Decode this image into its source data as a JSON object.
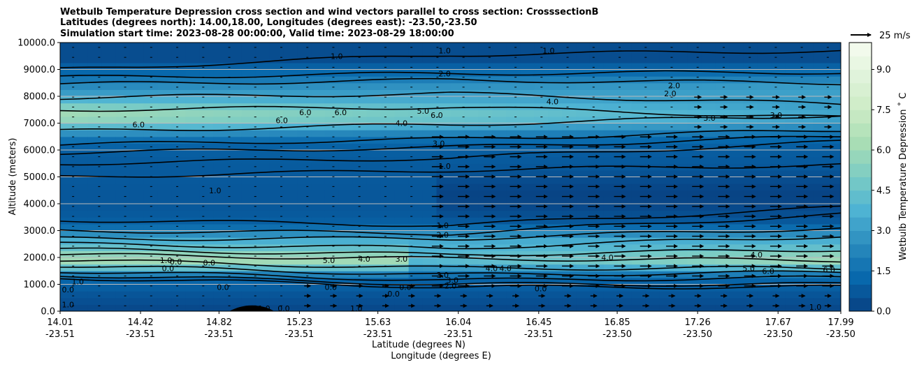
{
  "chart_data": {
    "type": "heatmap",
    "title_lines": [
      "Wetbulb Temperature Depression cross section and wind vectors parallel to cross section: CrosssectionB",
      "Latitudes (degrees north): 14.00,18.00, Longitudes (degrees east): -23.50,-23.50",
      "Simulation start time: 2023-08-28 00:00:00, Valid time: 2023-08-29 18:00:00"
    ],
    "xlabel": "Latitude (degrees N)",
    "xlabel2": "Longitude (degrees E)",
    "ylabel": "Altitude (meters)",
    "ylim": [
      0,
      10000
    ],
    "y_ticks": [
      "0.0",
      "1000.0",
      "2000.0",
      "3000.0",
      "4000.0",
      "5000.0",
      "6000.0",
      "7000.0",
      "8000.0",
      "9000.0",
      "10000.0"
    ],
    "x_ticks": [
      {
        "lat": "14.01",
        "lon": "-23.51"
      },
      {
        "lat": "14.42",
        "lon": "-23.51"
      },
      {
        "lat": "14.82",
        "lon": "-23.51"
      },
      {
        "lat": "15.23",
        "lon": "-23.51"
      },
      {
        "lat": "15.63",
        "lon": "-23.51"
      },
      {
        "lat": "16.04",
        "lon": "-23.51"
      },
      {
        "lat": "16.45",
        "lon": "-23.51"
      },
      {
        "lat": "16.85",
        "lon": "-23.50"
      },
      {
        "lat": "17.26",
        "lon": "-23.50"
      },
      {
        "lat": "17.67",
        "lon": "-23.50"
      },
      {
        "lat": "17.99",
        "lon": "-23.50"
      }
    ],
    "x_tick_values": [
      14.01,
      14.42,
      14.82,
      15.23,
      15.63,
      16.04,
      16.45,
      16.85,
      17.26,
      17.67,
      17.99
    ],
    "colorbar": {
      "label": "Wetbulb Temperature Depression $^\\circ$C",
      "label_display": "Wetbulb Temperature Depression ˚ C",
      "ticks": [
        "0.0",
        "1.5",
        "3.0",
        "4.5",
        "6.0",
        "7.5",
        "9.0"
      ],
      "tick_values": [
        0,
        1.5,
        3.0,
        4.5,
        6.0,
        7.5,
        9.0
      ],
      "range": [
        0,
        10
      ]
    },
    "quiver_key_label": "25 m/s",
    "grid": "horizontal",
    "contour_labels": [
      {
        "text": "1.0",
        "lat": 15.42,
        "alt": 9500
      },
      {
        "text": "1.0",
        "lat": 15.97,
        "alt": 9700
      },
      {
        "text": "2.0",
        "lat": 15.97,
        "alt": 8850
      },
      {
        "text": "1.0",
        "lat": 16.5,
        "alt": 9700
      },
      {
        "text": "2.0",
        "lat": 17.14,
        "alt": 8400
      },
      {
        "text": "2.0",
        "lat": 17.12,
        "alt": 8100
      },
      {
        "text": "4.0",
        "lat": 16.52,
        "alt": 7800
      },
      {
        "text": "6.0",
        "lat": 14.41,
        "alt": 6950
      },
      {
        "text": "6.0",
        "lat": 15.14,
        "alt": 7100
      },
      {
        "text": "6.0",
        "lat": 15.26,
        "alt": 7400
      },
      {
        "text": "6.0",
        "lat": 15.44,
        "alt": 7400
      },
      {
        "text": "6.0",
        "lat": 15.93,
        "alt": 7300
      },
      {
        "text": "5.0",
        "lat": 15.86,
        "alt": 7450
      },
      {
        "text": "4.0",
        "lat": 15.75,
        "alt": 7000
      },
      {
        "text": "3.0",
        "lat": 15.94,
        "alt": 6250
      },
      {
        "text": "3.0",
        "lat": 17.32,
        "alt": 7200
      },
      {
        "text": "3.0",
        "lat": 17.66,
        "alt": 7300
      },
      {
        "text": "1.0",
        "lat": 15.97,
        "alt": 5400
      },
      {
        "text": "1.0",
        "lat": 14.8,
        "alt": 4500
      },
      {
        "text": "1.0",
        "lat": 15.96,
        "alt": 3200
      },
      {
        "text": "2.0",
        "lat": 15.96,
        "alt": 2850
      },
      {
        "text": "5.0",
        "lat": 15.38,
        "alt": 1900
      },
      {
        "text": "4.0",
        "lat": 15.56,
        "alt": 1950
      },
      {
        "text": "3.0",
        "lat": 15.75,
        "alt": 1950
      },
      {
        "text": "3.0",
        "lat": 15.96,
        "alt": 1350
      },
      {
        "text": "3.0",
        "lat": 16.01,
        "alt": 1150
      },
      {
        "text": "2.0",
        "lat": 16.0,
        "alt": 950
      },
      {
        "text": "4.0",
        "lat": 16.21,
        "alt": 1600
      },
      {
        "text": "4.0",
        "lat": 16.28,
        "alt": 1600
      },
      {
        "text": "4.0",
        "lat": 16.8,
        "alt": 2000
      },
      {
        "text": "4.0",
        "lat": 17.56,
        "alt": 2100
      },
      {
        "text": "5.0",
        "lat": 17.52,
        "alt": 1600
      },
      {
        "text": "6.0",
        "lat": 17.62,
        "alt": 1500
      },
      {
        "text": "6.0",
        "lat": 17.93,
        "alt": 1550
      },
      {
        "text": "0.0",
        "lat": 15.39,
        "alt": 900
      },
      {
        "text": "0.0",
        "lat": 15.77,
        "alt": 900
      },
      {
        "text": "0.0",
        "lat": 15.71,
        "alt": 650
      },
      {
        "text": "0.0",
        "lat": 16.46,
        "alt": 850
      },
      {
        "text": "1.0",
        "lat": 15.52,
        "alt": 100
      },
      {
        "text": "1.0",
        "lat": 17.86,
        "alt": 150
      },
      {
        "text": "0.0",
        "lat": 14.84,
        "alt": 900
      },
      {
        "text": "0.0",
        "lat": 14.56,
        "alt": 1600
      },
      {
        "text": "1.0",
        "lat": 14.55,
        "alt": 1900
      },
      {
        "text": "0.0",
        "lat": 14.6,
        "alt": 1850
      },
      {
        "text": "0.0",
        "lat": 14.77,
        "alt": 1800
      },
      {
        "text": "0.0",
        "lat": 14.05,
        "alt": 800
      },
      {
        "text": "1.0",
        "lat": 14.05,
        "alt": 250
      },
      {
        "text": "1.0",
        "lat": 14.1,
        "alt": 1100
      },
      {
        "text": "0.0",
        "lat": 15.15,
        "alt": 100
      },
      {
        "text": "1.0",
        "lat": 15.05,
        "alt": 100
      }
    ]
  },
  "colors": {
    "colormap": [
      "#084081",
      "#0868ac",
      "#2b8cbe",
      "#4eb3d3",
      "#7bccc4",
      "#a8ddb5",
      "#ccebc5",
      "#e0f3db",
      "#f7fcf0"
    ],
    "contour_line": "#000000",
    "grid": "#bbbbbb"
  }
}
